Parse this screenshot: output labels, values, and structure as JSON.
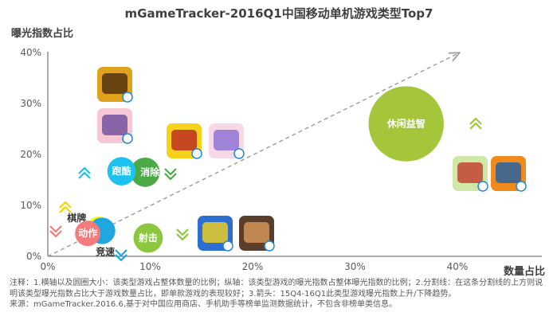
{
  "chart_data": {
    "type": "scatter",
    "title": "mGameTracker-2016Q1中国移动单机游戏类型Top7",
    "xlabel": "数量占比",
    "ylabel": "曝光指数占比",
    "xlim": [
      0,
      45
    ],
    "ylim": [
      0,
      40
    ],
    "x_ticks": [
      "0%",
      "10%",
      "20%",
      "30%",
      "40%"
    ],
    "y_ticks": [
      "0%",
      "10%",
      "20%",
      "30%",
      "40%"
    ],
    "grid": false,
    "dividing_line": {
      "from": [
        0,
        0
      ],
      "to": [
        40.5,
        40.5
      ]
    },
    "series": [
      {
        "label": "休闲益智",
        "x": 35,
        "y": 26,
        "size_pct": 21,
        "color": "#a5c63b",
        "trend": "up"
      },
      {
        "label": "消除",
        "x": 9.5,
        "y": 16.5,
        "size_pct": 3.2,
        "color": "#4aaa46",
        "trend": "down"
      },
      {
        "label": "跑酷",
        "x": 7.2,
        "y": 16.7,
        "size_pct": 3.0,
        "color": "#1ec2ef",
        "trend": "up"
      },
      {
        "label": "射击",
        "x": 9.8,
        "y": 3.6,
        "size_pct": 3.2,
        "color": "#8dc63f",
        "trend": "down"
      },
      {
        "label": "棋牌",
        "x": 5.0,
        "y": 5.2,
        "size_pct": 2.6,
        "color": "#fff200",
        "trend": "up"
      },
      {
        "label": "竞速",
        "x": 5.3,
        "y": 5.0,
        "size_pct": 2.6,
        "color": "#1ea7e1",
        "trend": "down"
      },
      {
        "label": "动作",
        "x": 3.9,
        "y": 4.5,
        "size_pct": 2.4,
        "color": "#f47b7b",
        "trend": "down"
      }
    ]
  },
  "notes": {
    "line1": "注释：1.横轴以及圆圈大小：该类型游戏占整体数量的比例；纵轴：该类型游戏的曝光指数占整体曝光指数的比例；2.分割线：在这条分割线的上方则说明该类型曝光指数占比大于游戏数量占比，即单款游戏的表现较好；3.箭头：15Q4-16Q1此类型游戏曝光指数上升/下降趋势。",
    "line2": "来源：mGameTracker.2016.6,基于对中国应用商店、手机助手等榜单监测数据统计，不包含非榜单类信息。"
  },
  "icons": [
    "temple-run-icon",
    "anime-girl-icon",
    "chick-match-icon",
    "bunny-icon",
    "fruit-ninja-icon",
    "fish-hd-icon",
    "flying-squad-icon",
    "sniper-icon"
  ]
}
